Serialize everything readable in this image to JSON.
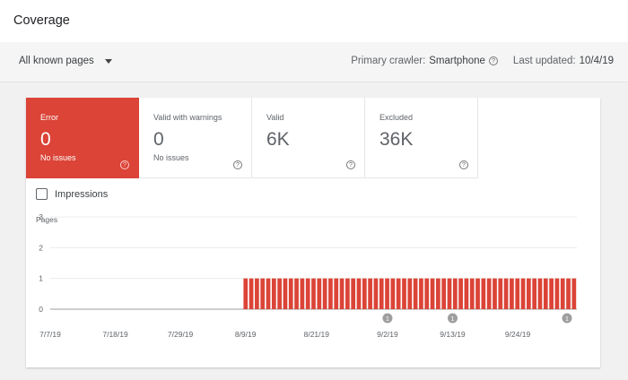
{
  "header": {
    "title": "Coverage"
  },
  "toolbar": {
    "filter_label": "All known pages",
    "crawler_label": "Primary crawler:",
    "crawler_value": "Smartphone",
    "updated_label": "Last updated:",
    "updated_value": "10/4/19"
  },
  "tiles": [
    {
      "label": "Error",
      "value": "0",
      "sub": "No issues"
    },
    {
      "label": "Valid with warnings",
      "value": "0",
      "sub": "No issues"
    },
    {
      "label": "Valid",
      "value": "6K",
      "sub": ""
    },
    {
      "label": "Excluded",
      "value": "36K",
      "sub": ""
    }
  ],
  "impressions_label": "Impressions",
  "chart_data": {
    "type": "bar",
    "ylabel": "Pages",
    "ylim": [
      0,
      3
    ],
    "yticks": [
      "0",
      "1",
      "2",
      "3"
    ],
    "xticks": [
      "7/7/19",
      "7/18/19",
      "7/29/19",
      "8/9/19",
      "8/21/19",
      "9/2/19",
      "9/13/19",
      "9/24/19"
    ],
    "date_range": [
      "7/7/19",
      "10/4/19"
    ],
    "values": [
      0,
      0,
      0,
      0,
      0,
      0,
      0,
      0,
      0,
      0,
      0,
      0,
      0,
      0,
      0,
      0,
      0,
      0,
      0,
      0,
      0,
      0,
      0,
      0,
      0,
      0,
      0,
      0,
      0,
      0,
      0,
      0,
      0,
      0,
      1,
      1,
      1,
      1,
      1,
      1,
      1,
      1,
      1,
      1,
      1,
      1,
      1,
      1,
      1,
      1,
      1,
      1,
      1,
      1,
      1,
      1,
      1,
      1,
      1,
      1,
      1,
      1,
      1,
      1,
      1,
      1,
      1,
      1,
      1,
      1,
      1,
      1,
      1,
      1,
      1,
      1,
      1,
      1,
      1,
      1,
      1,
      1,
      1,
      1,
      1,
      1,
      1,
      1,
      1,
      1,
      1,
      1,
      1
    ],
    "color": "#db4437",
    "annotations": [
      {
        "date": "9/2/19",
        "label": "1"
      },
      {
        "date": "9/13/19",
        "label": "1"
      },
      {
        "date": "10/4/19",
        "label": "1"
      }
    ]
  }
}
